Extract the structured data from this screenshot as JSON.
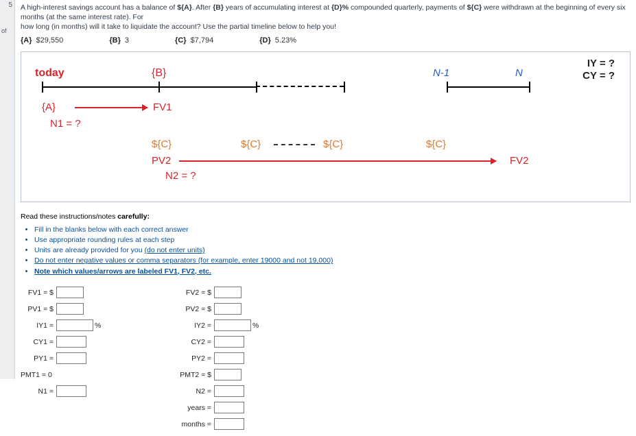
{
  "sidebar": {
    "num": "5",
    "label": "t of"
  },
  "question": {
    "line1_pre": "A high-interest savings account has a balance of ",
    "A_tok": "${A}",
    "line1_mid1": ". After ",
    "B_tok": "{B}",
    "line1_mid2": " years of accumulating interest at ",
    "D_tok": "{D}%",
    "line1_mid3": " compounded quarterly, payments of ",
    "C_tok": "${C}",
    "line1_end": " were withdrawn at the beginning of every six months (at the same interest rate). For",
    "line2": "how long (in months) will it take to liquidate the account? Use the partial timeline below to help you!"
  },
  "given": {
    "A_lbl": "{A}",
    "A_val": "$29,550",
    "B_lbl": "{B}",
    "B_val": "3",
    "C_lbl": "{C}",
    "C_val": "$7,794",
    "D_lbl": "{D}",
    "D_val": "5.23%"
  },
  "timeline": {
    "today": "today",
    "B": "{B}",
    "IY": "IY = ?",
    "CY": "CY = ?",
    "Nm1": "N-1",
    "N": "N",
    "A": "{A}",
    "N1": "N1 = ?",
    "FV1": "FV1",
    "C": "${C}",
    "PV2": "PV2",
    "FV2": "FV2",
    "N2": "N2 = ?",
    "ticks": [
      0,
      170,
      312,
      440,
      590,
      710
    ],
    "solid_segments": [
      [
        0,
        170
      ],
      [
        170,
        312
      ],
      [
        590,
        710
      ]
    ],
    "dash_segments": [
      [
        312,
        440
      ]
    ],
    "c_positions": [
      190,
      320,
      440,
      590
    ]
  },
  "instructions": {
    "head": "Read these instructions/notes ",
    "head_b": "carefully:",
    "items": [
      "Fill in the blanks below with each correct answer",
      "Use appropriate rounding rules at each step",
      "Units are already provided for you ",
      "Do not enter negative values or comma separators ",
      "Note which values/arrows are labeled FV1, FV2, etc."
    ],
    "u3": "(do not enter units)",
    "u4": "(for example, enter 19000 and not 19,000)"
  },
  "left": {
    "FV1": "FV1 = $",
    "PV1": "PV1 = $",
    "IY1": "IY1 =",
    "CY1": "CY1 =",
    "PY1": "PY1 =",
    "PMT1": "PMT1 = 0",
    "N1": "N1 ="
  },
  "right": {
    "FV2": "FV2 = $",
    "PV2": "PV2 = $",
    "IY2": "IY2 =",
    "CY2": "CY2 =",
    "PY2": "PY2 =",
    "PMT2": "PMT2 = $",
    "N2": "N2 =",
    "years": "years =",
    "months": "months ="
  },
  "unit_pct": "%"
}
